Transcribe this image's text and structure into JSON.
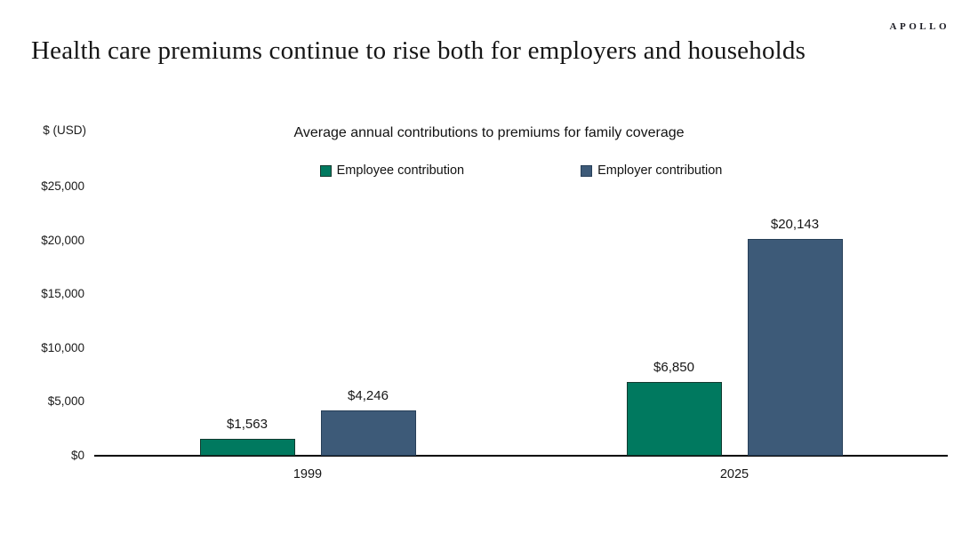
{
  "brand": "APOLLO",
  "page_title": "Health care premiums continue to rise both for employers and households",
  "chart_data": {
    "type": "bar",
    "title": "Average annual contributions to premiums for family coverage",
    "unit_label": "$ (USD)",
    "xlabel": "",
    "ylabel": "$ (USD)",
    "categories": [
      "1999",
      "2025"
    ],
    "series": [
      {
        "name": "Employee contribution",
        "values": [
          1563,
          6850
        ],
        "value_labels": [
          "$1,563",
          "$6,850"
        ],
        "color": "#00795f",
        "border_color": "#123a2f"
      },
      {
        "name": "Employer contribution",
        "values": [
          4246,
          20143
        ],
        "value_labels": [
          "$4,246",
          "$20,143"
        ],
        "color": "#3d5a78",
        "border_color": "#273f58"
      }
    ],
    "ylim": [
      0,
      25000
    ],
    "ytick_step": 5000,
    "ytick_labels": [
      "$0",
      "$5,000",
      "$10,000",
      "$15,000",
      "$20,000",
      "$25,000"
    ],
    "grid": false,
    "legend_position": "top-center"
  }
}
